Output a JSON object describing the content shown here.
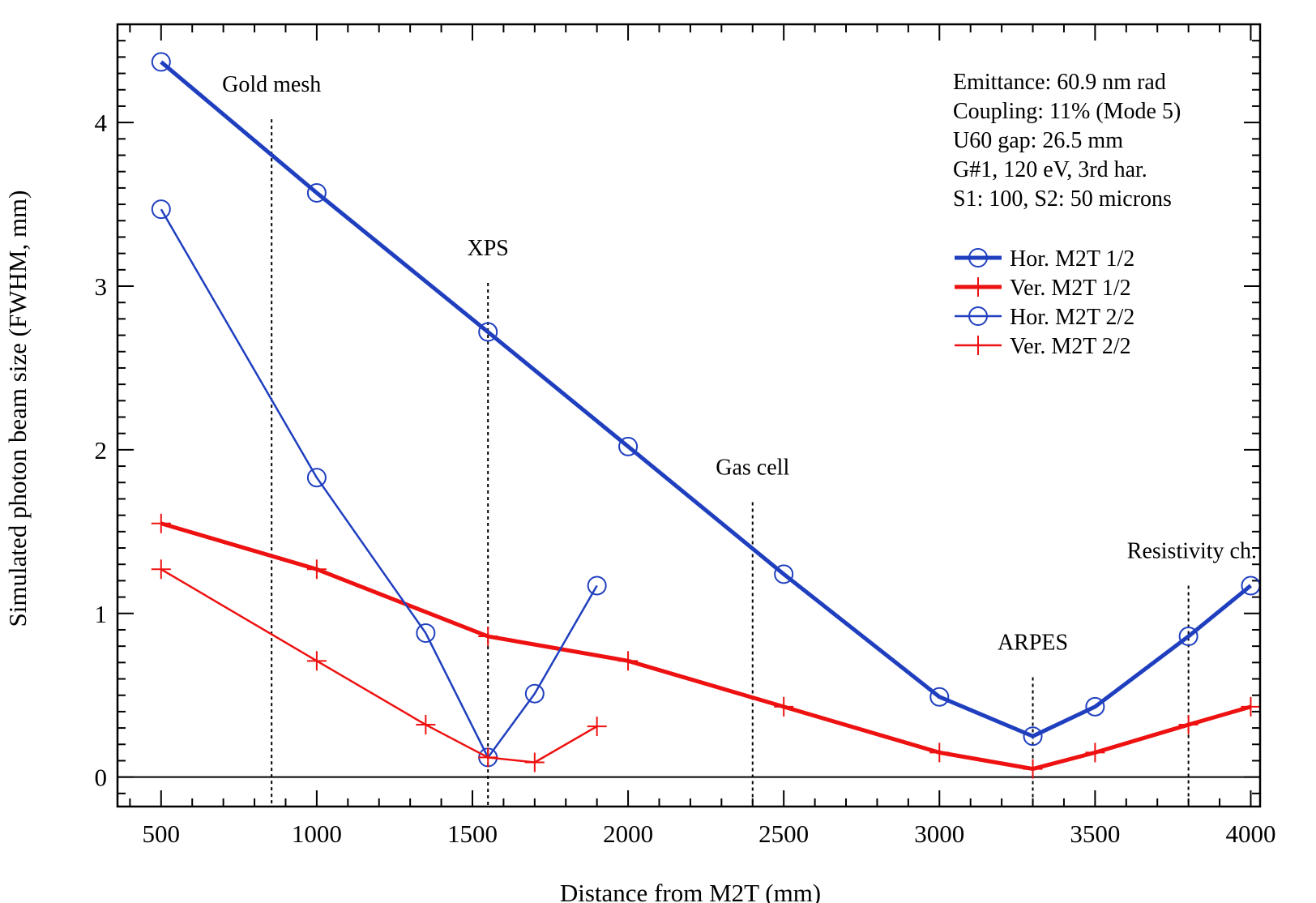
{
  "chart_data": {
    "type": "line",
    "xlabel": "Distance from M2T (mm)",
    "ylabel": "Simulated photon beam size (FWHM, mm)",
    "xlim": [
      360,
      4030
    ],
    "ylim": [
      -0.18,
      4.6
    ],
    "xticks": [
      500,
      1000,
      1500,
      2000,
      2500,
      3000,
      3500,
      4000
    ],
    "xtick_labels": [
      "500",
      "1000",
      "1500",
      "2000",
      "2500",
      "3000",
      "3500",
      "4000"
    ],
    "yticks": [
      0,
      1,
      2,
      3,
      4
    ],
    "ytick_labels": [
      "0",
      "1",
      "2",
      "3",
      "4"
    ],
    "grid": false,
    "zero_line": true,
    "series": [
      {
        "name": "Hor. M2T 1/2",
        "color": "#1f3fbf",
        "marker": "circle",
        "weight": "thick",
        "x": [
          500,
          1000,
          1550,
          2000,
          2500,
          3000,
          3300,
          3500,
          3800,
          4000
        ],
        "y": [
          4.37,
          3.57,
          2.72,
          2.02,
          1.24,
          0.49,
          0.25,
          0.43,
          0.86,
          1.17
        ]
      },
      {
        "name": "Ver. M2T 1/2",
        "color": "#ee1111",
        "marker": "plus",
        "weight": "thick",
        "x": [
          500,
          1000,
          1550,
          2000,
          2500,
          3000,
          3300,
          3500,
          3800,
          4000
        ],
        "y": [
          1.55,
          1.27,
          0.86,
          0.71,
          0.43,
          0.15,
          0.05,
          0.15,
          0.32,
          0.43
        ]
      },
      {
        "name": "Hor. M2T 2/2",
        "color": "#1f3fbf",
        "marker": "circle",
        "weight": "thin",
        "x": [
          500,
          1000,
          1350,
          1550,
          1700,
          1900
        ],
        "y": [
          3.47,
          1.83,
          0.88,
          0.12,
          0.51,
          1.17
        ]
      },
      {
        "name": "Ver. M2T 2/2",
        "color": "#ee1111",
        "marker": "plus",
        "weight": "thin",
        "x": [
          500,
          1000,
          1350,
          1550,
          1700,
          1900
        ],
        "y": [
          1.27,
          0.71,
          0.32,
          0.12,
          0.09,
          0.31
        ]
      }
    ],
    "vertical_markers": [
      {
        "label": "Gold mesh",
        "x": 855,
        "y_top": 4.02
      },
      {
        "label": "XPS",
        "x": 1550,
        "y_top": 3.02
      },
      {
        "label": "Gas cell",
        "x": 2400,
        "y_top": 1.68
      },
      {
        "label": "ARPES",
        "x": 3300,
        "y_top": 0.61
      },
      {
        "label": "Resistivity ch.",
        "x": 3800,
        "y_top": 1.17
      }
    ],
    "info_lines": [
      "Emittance: 60.9 nm rad",
      "Coupling: 11% (Mode 5)",
      "U60 gap: 26.5 mm",
      "G#1, 120 eV, 3rd har.",
      "S1: 100, S2: 50 microns"
    ],
    "legend_position": "right"
  }
}
